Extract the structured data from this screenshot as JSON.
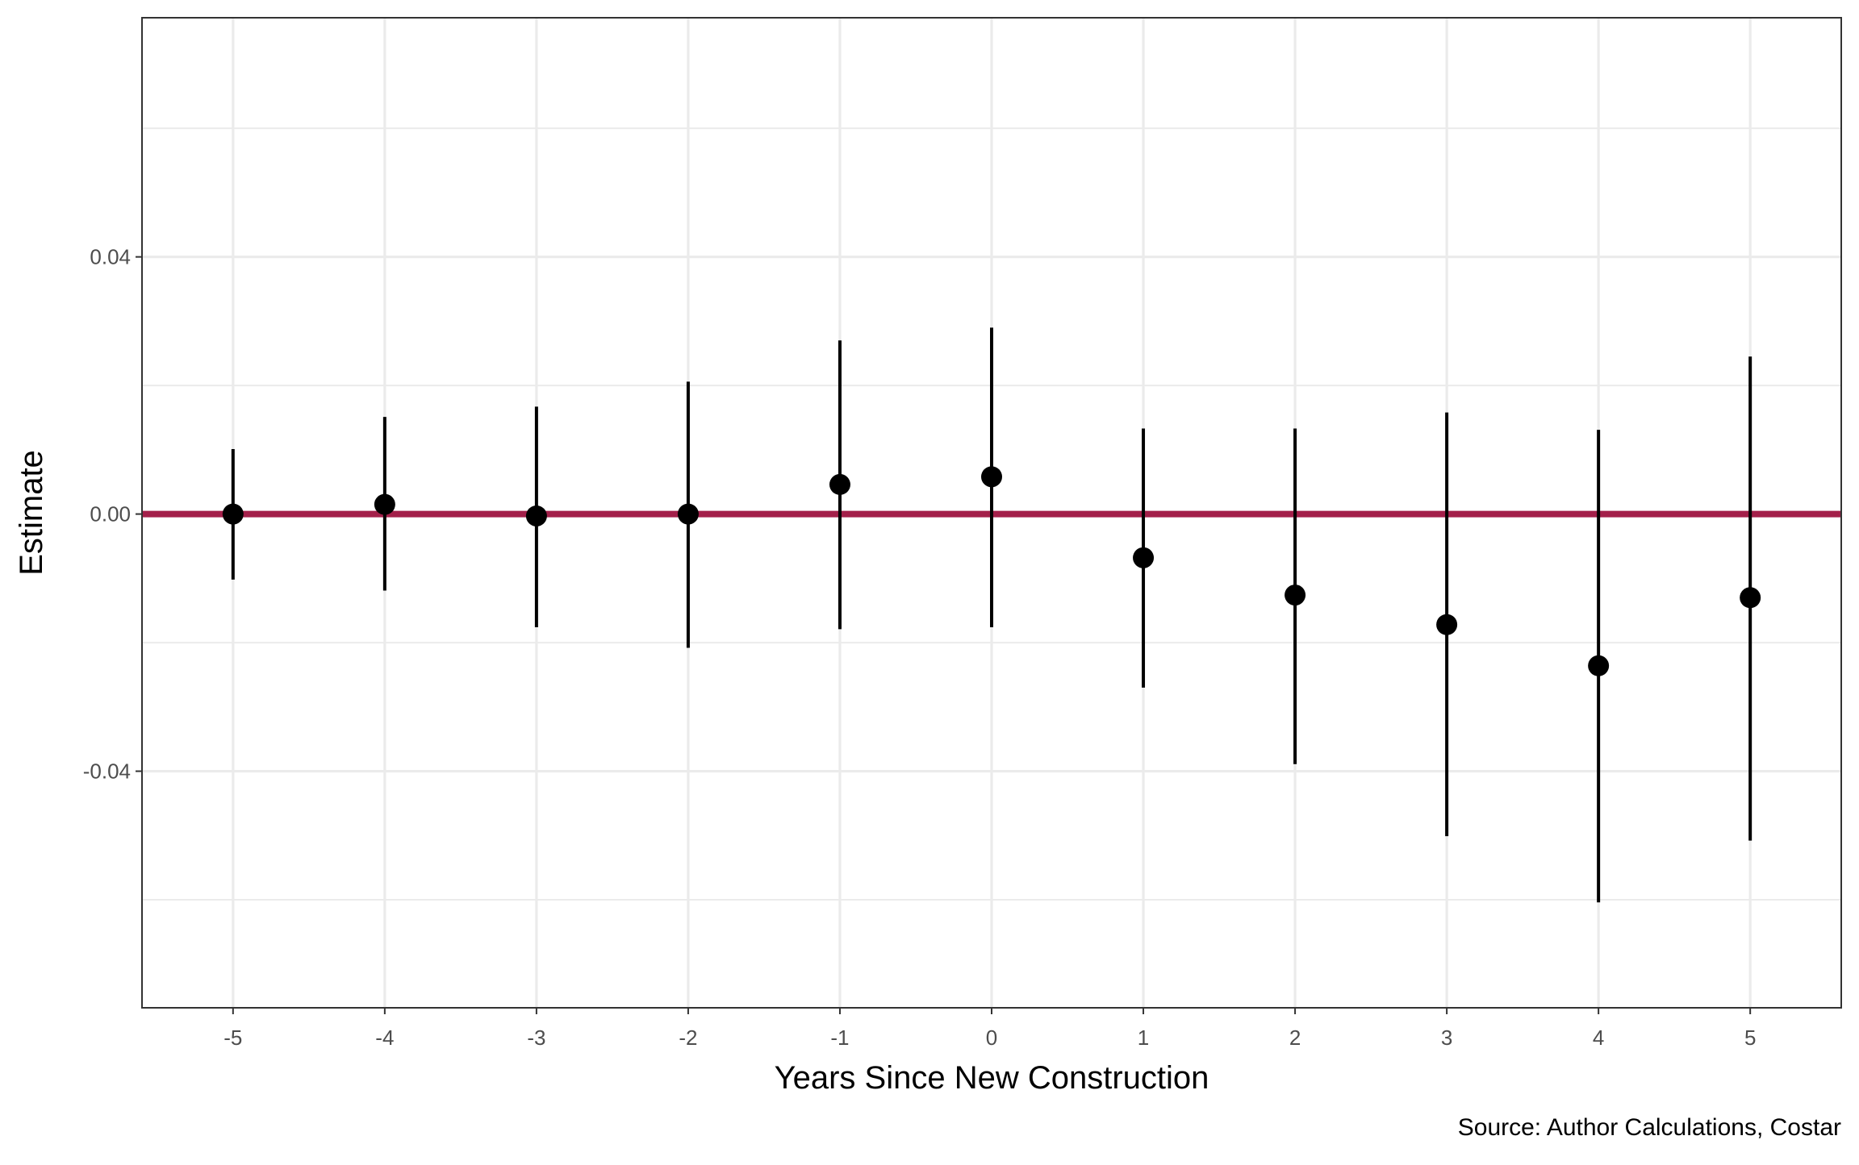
{
  "chart_data": {
    "type": "scatter",
    "title": "",
    "xlabel": "Years Since New Construction",
    "ylabel": "Estimate",
    "caption": "Source: Author Calculations, Costar",
    "x": [
      -5,
      -4,
      -3,
      -2,
      -1,
      0,
      1,
      2,
      3,
      4,
      5
    ],
    "x_tick_labels": [
      "-5",
      "-4",
      "-3",
      "-2",
      "-1",
      "0",
      "1",
      "2",
      "3",
      "4",
      "5"
    ],
    "y_ticks": [
      0.04,
      0.0,
      -0.04
    ],
    "y_tick_labels": [
      "0.04",
      "0.00",
      "-0.04"
    ],
    "xlim": [
      -5.6,
      5.6
    ],
    "ylim": [
      -0.0768,
      0.0772
    ],
    "grid": true,
    "series": [
      {
        "estimate": [
          0.0,
          0.0015,
          -0.0003,
          0.0,
          0.0046,
          0.0058,
          -0.0068,
          -0.0126,
          -0.0172,
          -0.0236,
          -0.013
        ],
        "ci_lower": [
          -0.0102,
          -0.0119,
          -0.0176,
          -0.0208,
          -0.0179,
          -0.0176,
          -0.027,
          -0.0389,
          -0.0501,
          -0.0604,
          -0.0508
        ],
        "ci_upper": [
          0.0101,
          0.0151,
          0.0167,
          0.0206,
          0.027,
          0.029,
          0.0133,
          0.0133,
          0.0158,
          0.0131,
          0.0245
        ]
      }
    ],
    "reference_line": {
      "y": 0.0,
      "color": "#a3204a"
    },
    "colors": {
      "points": "#000000",
      "error_bars": "#000000",
      "grid": "#ebebeb",
      "panel_border": "#333333",
      "tick_text": "#4d4d4d"
    }
  }
}
